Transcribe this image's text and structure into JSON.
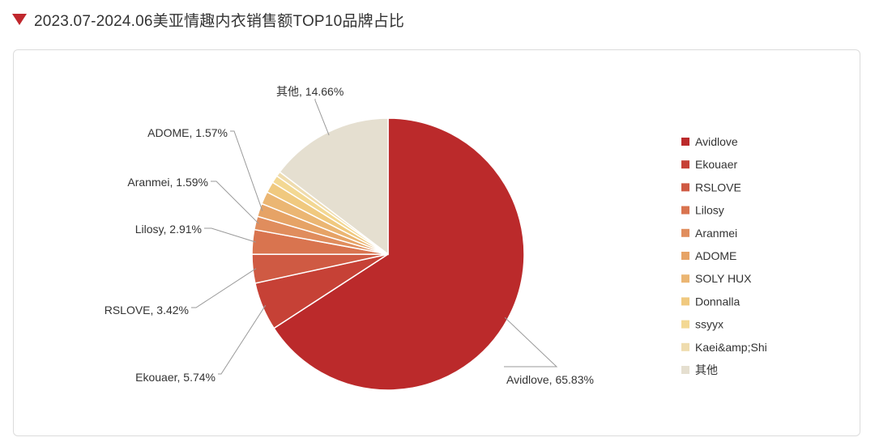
{
  "header": {
    "title": "2023.07-2024.06美亚情趣内衣销售额TOP10品牌占比",
    "marker_color": "#c0272d"
  },
  "chart_data": {
    "type": "pie",
    "title": "2023.07-2024.06美亚情趣内衣销售额TOP10品牌占比",
    "legend_position": "right",
    "start_angle_deg": 0,
    "direction": "clockwise",
    "slices": [
      {
        "name": "Avidlove",
        "value": 65.83,
        "label": "Avidlove, 65.83%",
        "color": "#bb2a2b",
        "show_label": true
      },
      {
        "name": "Ekouaer",
        "value": 5.74,
        "label": "Ekouaer, 5.74%",
        "color": "#c64136",
        "show_label": true
      },
      {
        "name": "RSLOVE",
        "value": 3.42,
        "label": "RSLOVE, 3.42%",
        "color": "#cf5a43",
        "show_label": true
      },
      {
        "name": "Lilosy",
        "value": 2.91,
        "label": "Lilosy, 2.91%",
        "color": "#d9744f",
        "show_label": true
      },
      {
        "name": "Aranmei",
        "value": 1.59,
        "label": "Aranmei, 1.59%",
        "color": "#e08d5d",
        "show_label": true
      },
      {
        "name": "ADOME",
        "value": 1.57,
        "label": "ADOME, 1.57%",
        "color": "#e6a366",
        "show_label": true
      },
      {
        "name": "SOLY HUX",
        "value": 1.5,
        "label": "",
        "color": "#ebb673",
        "show_label": false
      },
      {
        "name": "Donnalla",
        "value": 1.3,
        "label": "",
        "color": "#f0c97f",
        "show_label": false
      },
      {
        "name": "ssyyx",
        "value": 0.9,
        "label": "",
        "color": "#f3d893",
        "show_label": false
      },
      {
        "name": "Kaei&amp;Shi",
        "value": 0.58,
        "label": "",
        "color": "#efdcae",
        "show_label": false
      },
      {
        "name": "其他",
        "value": 14.66,
        "label": "其他, 14.66%",
        "color": "#e5dfd0",
        "show_label": true
      }
    ]
  }
}
